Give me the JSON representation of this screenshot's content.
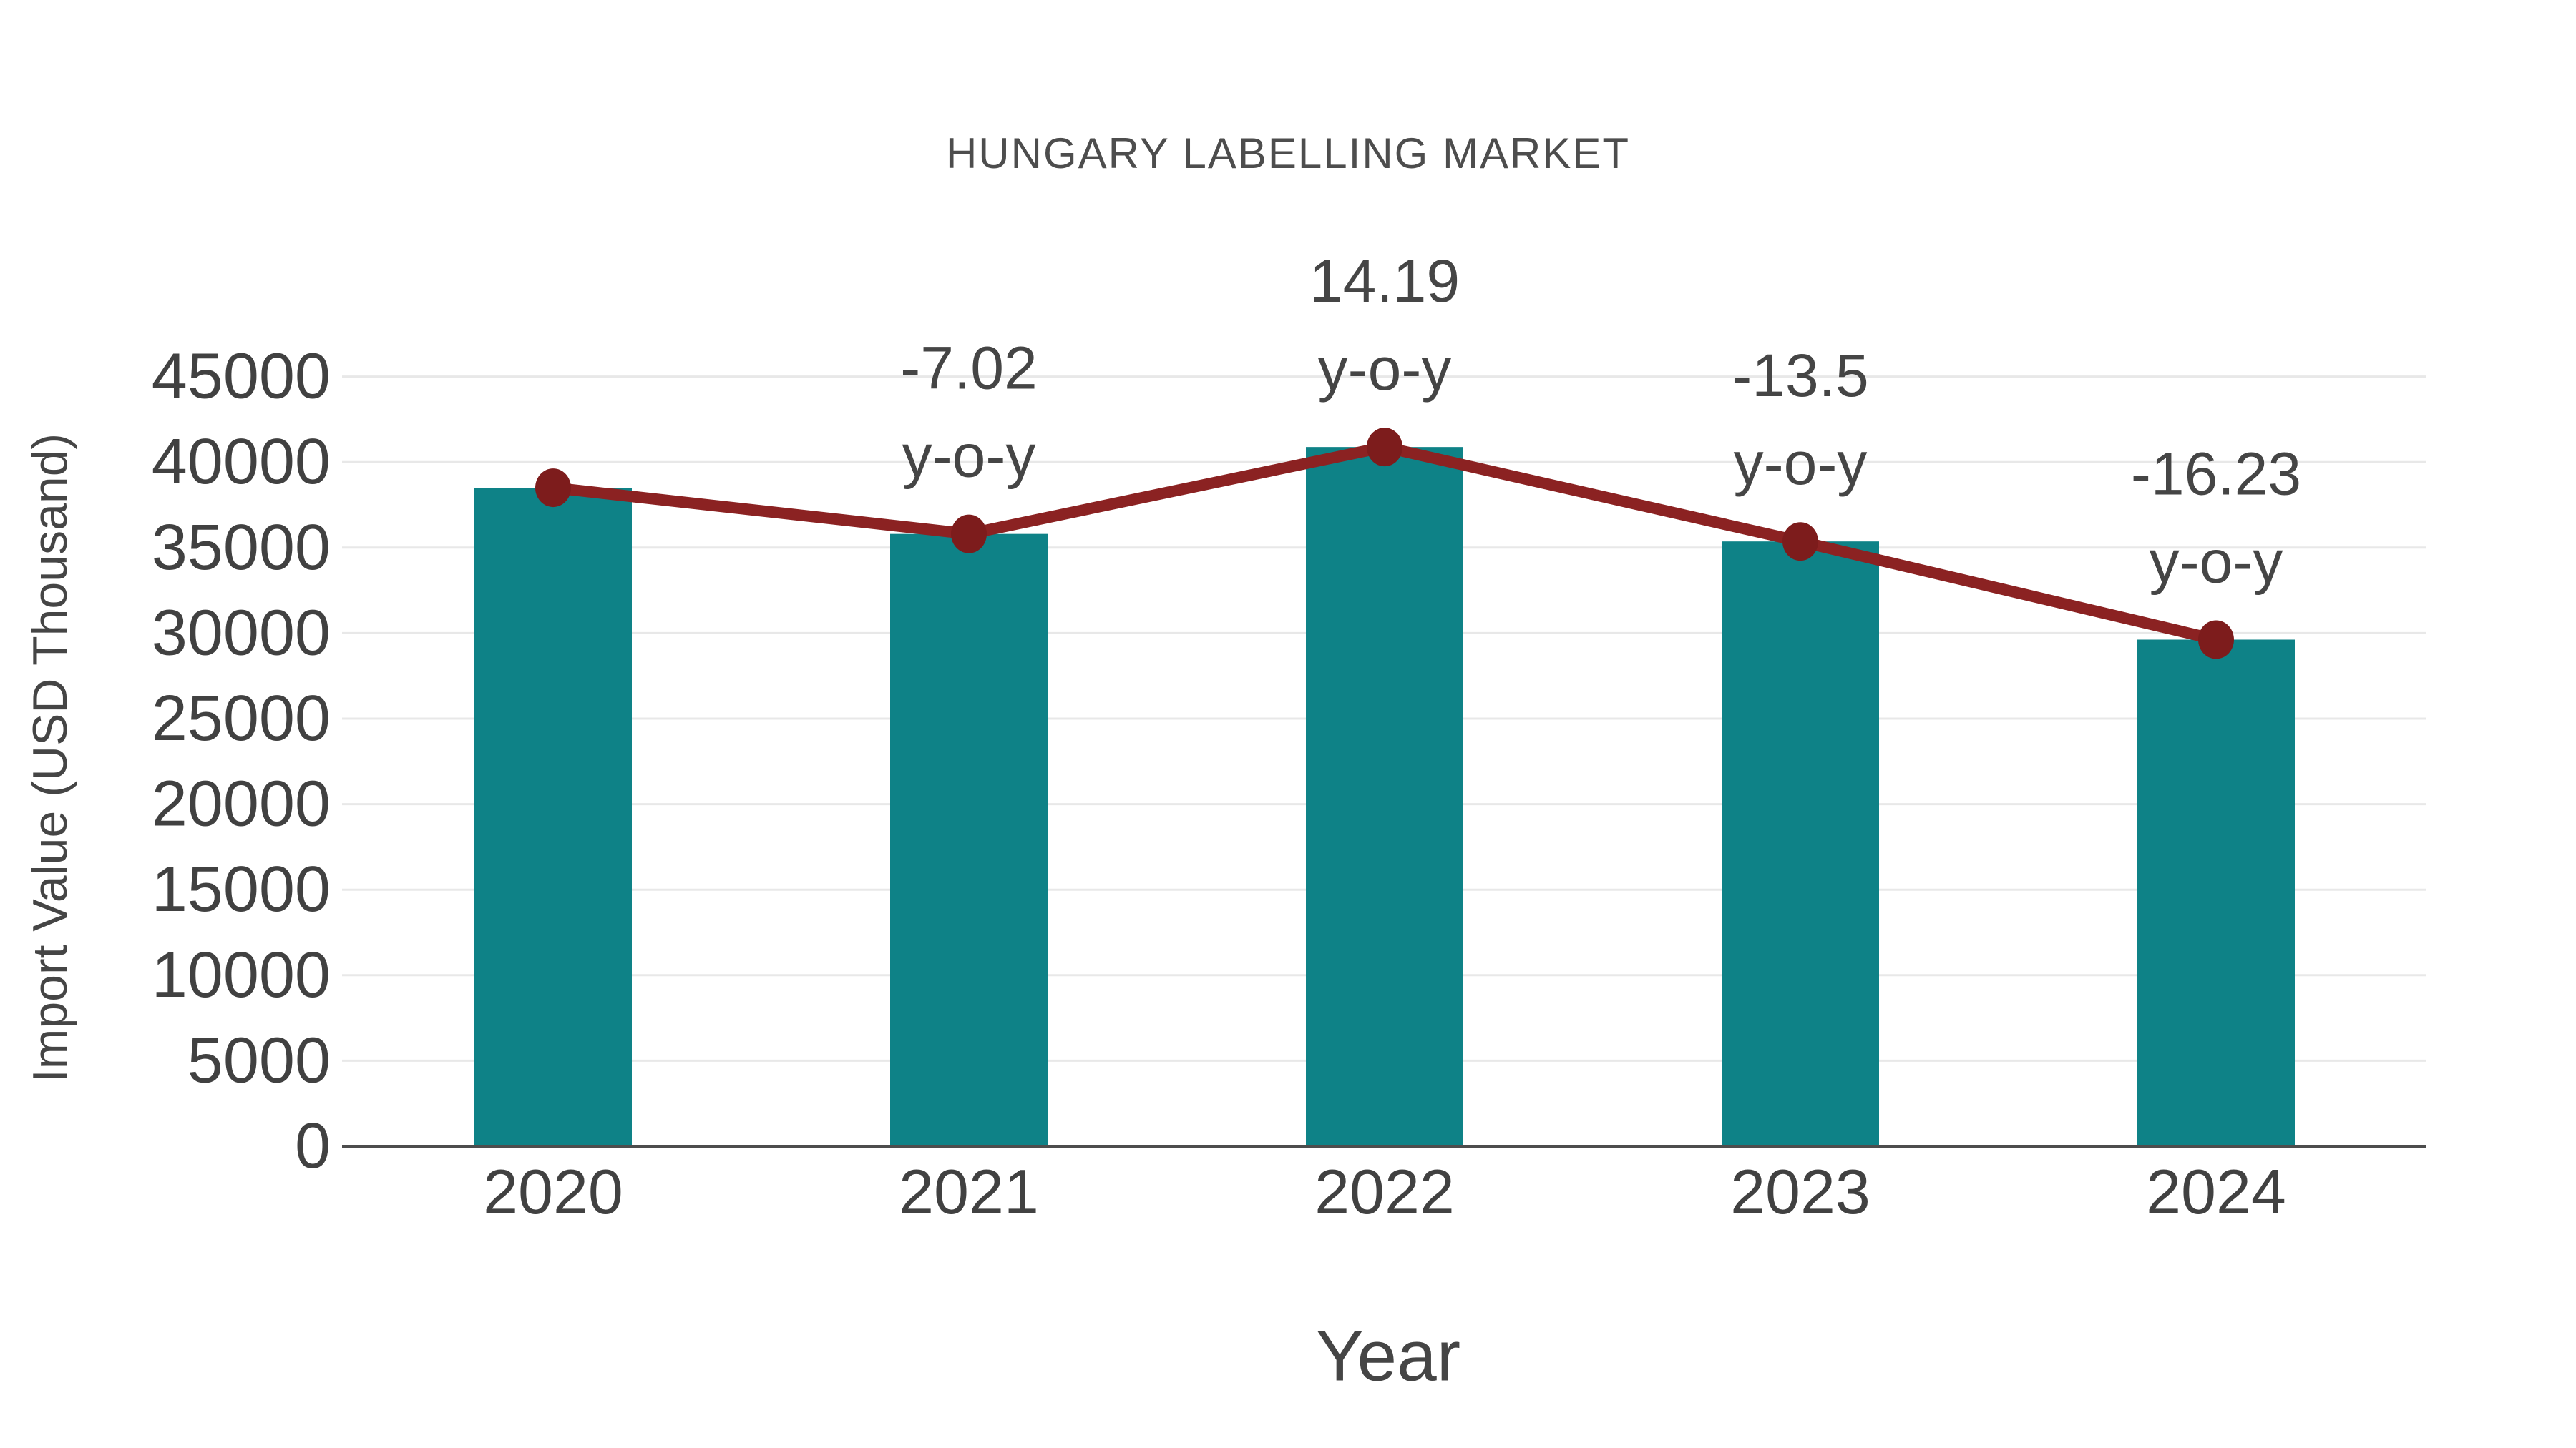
{
  "header": {
    "title": "HUNGARY LABELLING MARKET"
  },
  "axes": {
    "x_label": "Year",
    "y_label": "Import Value (USD Thousand)"
  },
  "chart_data": {
    "type": "bar",
    "title": "HUNGARY LABELLING MARKET",
    "categories": [
      "2020",
      "2021",
      "2022",
      "2023",
      "2024"
    ],
    "series": [
      {
        "name": "Import Value (USD Thousand)",
        "type": "bar",
        "values": [
          38500,
          35800,
          40880,
          35360,
          29620
        ]
      },
      {
        "name": "y-o-y",
        "type": "line",
        "values": [
          null,
          -7.02,
          14.19,
          -13.5,
          -16.23
        ]
      }
    ],
    "annotations": [
      {
        "category": "2021",
        "value": "-7.02",
        "suffix": "y-o-y"
      },
      {
        "category": "2022",
        "value": "14.19",
        "suffix": "y-o-y"
      },
      {
        "category": "2023",
        "value": "-13.5",
        "suffix": "y-o-y"
      },
      {
        "category": "2024",
        "value": "-16.23",
        "suffix": "y-o-y"
      }
    ],
    "xlabel": "Year",
    "ylabel": "Import Value (USD Thousand)",
    "ylim": [
      0,
      45000
    ],
    "ytick_step": 5000,
    "yticks": [
      0,
      5000,
      10000,
      15000,
      20000,
      25000,
      30000,
      35000,
      40000,
      45000
    ],
    "grid": "horizontal",
    "legend": "none"
  },
  "colors": {
    "bar": "#0e8287",
    "line": "#8b2222",
    "marker": "#7d1c1c",
    "grid": "#e8e8e8",
    "axis": "#4d4d4d",
    "tick_text": "#414141",
    "annotation_text": "#454545",
    "title_text": "#4d4d4d",
    "background": "#ffffff"
  }
}
